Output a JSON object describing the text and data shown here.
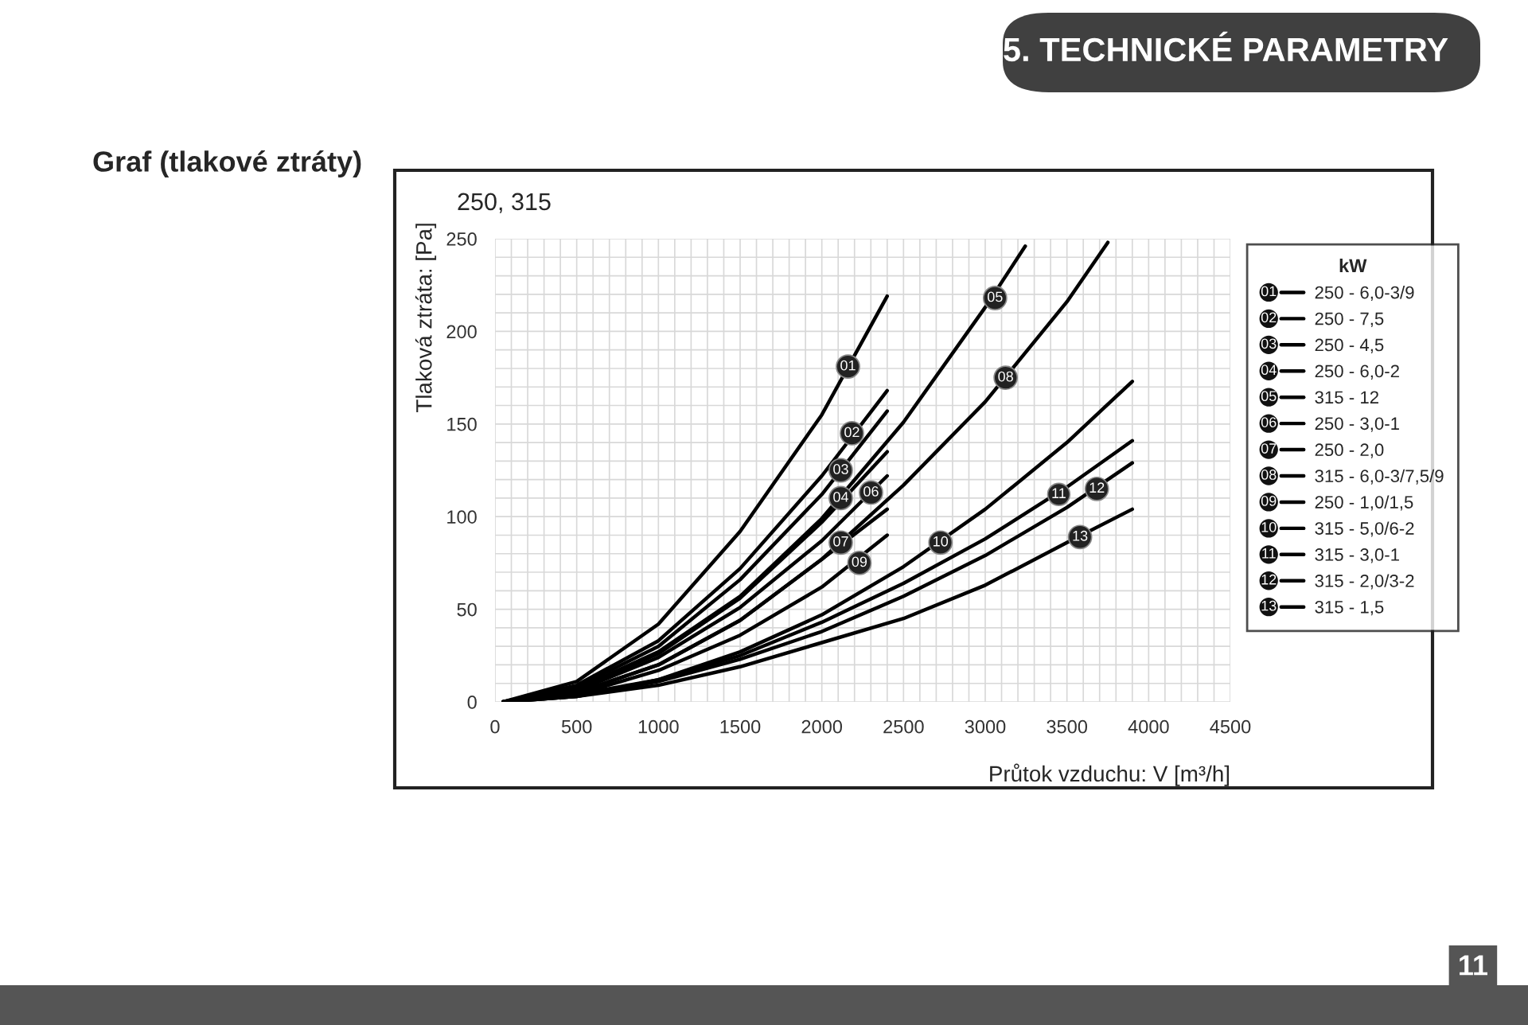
{
  "chart_data": {
    "type": "line",
    "title": "Graf (tlakové ztráty)",
    "subtitle": "250, 315",
    "xlabel": "Průtok vzduchu: V [m³/h]",
    "ylabel": "Tlaková ztráta: [Pa]",
    "legend_title": "kW",
    "x": [
      50,
      500,
      1000,
      1500,
      2000,
      2400
    ],
    "series": [
      {
        "name": "250 - 6,0-3/9",
        "color": "#000000",
        "values": [
          0,
          11,
          42,
          92,
          155,
          219
        ]
      },
      {
        "name": "250 - 7,5",
        "color": "#000000",
        "values": [
          0,
          9,
          33,
          72,
          122,
          168
        ]
      },
      {
        "name": "250 - 4,5",
        "color": "#000000",
        "values": [
          0,
          8,
          30,
          66,
          112,
          157
        ]
      },
      {
        "name": "250 - 6,0-2",
        "color": "#000000",
        "values": [
          0,
          7,
          26,
          56,
          97,
          135
        ]
      },
      {
        "name": "315 - 12",
        "color": "#000000",
        "x": [
          50,
          500,
          1000,
          1500,
          2000,
          2500,
          3000,
          3245
        ],
        "values": [
          0,
          7,
          27,
          57,
          99,
          151,
          213,
          246
        ]
      },
      {
        "name": "250 - 3,0-1",
        "color": "#000000",
        "values": [
          0,
          6,
          24,
          51,
          87,
          122
        ]
      },
      {
        "name": "250 - 2,0",
        "color": "#000000",
        "values": [
          0,
          5,
          20,
          44,
          77,
          104
        ]
      },
      {
        "name": "315 - 6,0-3/7,5/9",
        "color": "#000000",
        "x": [
          50,
          500,
          1000,
          1500,
          2000,
          2500,
          3000,
          3500,
          3750
        ],
        "values": [
          0,
          5,
          20,
          44,
          77,
          117,
          162,
          216,
          248
        ]
      },
      {
        "name": "250 - 1,0/1,5",
        "color": "#000000",
        "values": [
          0,
          4,
          17,
          36,
          62,
          90
        ]
      },
      {
        "name": "315 - 5,0/6-2",
        "color": "#000000",
        "x": [
          50,
          500,
          1000,
          1500,
          2000,
          2500,
          3000,
          3500,
          3900
        ],
        "values": [
          0,
          3,
          12,
          27,
          47,
          73,
          104,
          140,
          173
        ]
      },
      {
        "name": "315 - 3,0-1",
        "color": "#000000",
        "x": [
          50,
          500,
          1000,
          1500,
          2000,
          2500,
          3000,
          3500,
          3900
        ],
        "values": [
          0,
          4,
          12,
          25,
          43,
          64,
          88,
          116,
          141
        ]
      },
      {
        "name": "315 - 2,0/3-2",
        "color": "#000000",
        "x": [
          50,
          500,
          1000,
          1500,
          2000,
          2500,
          3000,
          3500,
          3900
        ],
        "values": [
          0,
          3,
          11,
          23,
          38,
          57,
          79,
          105,
          129
        ]
      },
      {
        "name": "315 - 1,5",
        "color": "#000000",
        "x": [
          50,
          500,
          1000,
          1500,
          2000,
          2500,
          3000,
          3500,
          3900
        ],
        "values": [
          0,
          3,
          9,
          19,
          32,
          45,
          63,
          86,
          104
        ]
      }
    ],
    "annotations": [
      {
        "text": "01",
        "x": 2160,
        "y": 181
      },
      {
        "text": "02",
        "x": 2184,
        "y": 145
      },
      {
        "text": "03",
        "x": 2116,
        "y": 125
      },
      {
        "text": "04",
        "x": 2116,
        "y": 110
      },
      {
        "text": "05",
        "x": 3060,
        "y": 218
      },
      {
        "text": "06",
        "x": 2301,
        "y": 113
      },
      {
        "text": "07",
        "x": 2116,
        "y": 86
      },
      {
        "text": "08",
        "x": 3125,
        "y": 175
      },
      {
        "text": "09",
        "x": 2230,
        "y": 75
      },
      {
        "text": "10",
        "x": 2726,
        "y": 86
      },
      {
        "text": "11",
        "x": 3450,
        "y": 112
      },
      {
        "text": "12",
        "x": 3683,
        "y": 115
      },
      {
        "text": "13",
        "x": 3580,
        "y": 89
      },
      "5. TECHNICKÉ PARAMETRY",
      "11"
    ],
    "xlim": [
      0,
      4500
    ],
    "ylim": [
      0,
      250
    ],
    "xticks": [
      0,
      {
        "value": 100,
        "label": null
      },
      {
        "value": 200,
        "label": null
      },
      {
        "value": 300,
        "label": null
      },
      {
        "value": 400,
        "label": null
      },
      500,
      {
        "value": 600,
        "label": null
      },
      {
        "value": 700,
        "label": null
      },
      {
        "value": 800,
        "label": null
      },
      {
        "value": 900,
        "label": null
      },
      1000,
      {
        "value": 1100,
        "label": null
      },
      {
        "value": 1200,
        "label": null
      },
      {
        "value": 1300,
        "label": null
      },
      {
        "value": 1400,
        "label": null
      },
      1500,
      {
        "value": 1600,
        "label": null
      },
      {
        "value": 1700,
        "label": null
      },
      {
        "value": 1800,
        "label": null
      },
      {
        "value": 1900,
        "label": null
      },
      2000,
      {
        "value": 2100,
        "label": null
      },
      {
        "value": 2200,
        "label": null
      },
      {
        "value": 2300,
        "label": null
      },
      {
        "value": 2400,
        "label": null
      },
      2500,
      {
        "value": 2600,
        "label": null
      },
      {
        "value": 2700,
        "label": null
      },
      {
        "value": 2800,
        "label": null
      },
      {
        "value": 2900,
        "label": null
      },
      3000,
      {
        "value": 3100,
        "label": null
      },
      {
        "value": 3200,
        "label": null
      },
      {
        "value": 3300,
        "label": null
      },
      {
        "value": 3400,
        "label": null
      },
      3500,
      {
        "value": 3600,
        "label": null
      },
      {
        "value": 3700,
        "label": null
      },
      {
        "value": 3800,
        "label": null
      },
      {
        "value": 3900,
        "label": null
      },
      4000,
      {
        "value": 4100,
        "label": null
      },
      {
        "value": 4200,
        "label": null
      },
      {
        "value": 4300,
        "label": null
      },
      {
        "value": 4400,
        "label": null
      },
      4500
    ],
    "yticks": [
      0,
      {
        "value": 10,
        "label": null
      },
      {
        "value": 20,
        "label": null
      },
      {
        "value": 30,
        "label": null
      },
      {
        "value": 40,
        "label": null
      },
      50,
      {
        "value": 60,
        "label": null
      },
      {
        "value": 70,
        "label": null
      },
      {
        "value": 80,
        "label": null
      },
      {
        "value": 90,
        "label": null
      },
      100,
      {
        "value": 110,
        "label": null
      },
      {
        "value": 120,
        "label": null
      },
      {
        "value": 130,
        "label": null
      },
      {
        "value": 140,
        "label": null
      },
      150,
      {
        "value": 160,
        "label": null
      },
      {
        "value": 170,
        "label": null
      },
      {
        "value": 180,
        "label": null
      },
      {
        "value": 190,
        "label": null
      },
      200,
      {
        "value": 210,
        "label": null
      },
      {
        "value": 220,
        "label": null
      },
      {
        "value": 230,
        "label": null
      },
      {
        "value": 240,
        "label": null
      },
      250
    ],
    "grid": true,
    "legend": "right",
    "marker": "none",
    "line_style": "solid"
  }
}
